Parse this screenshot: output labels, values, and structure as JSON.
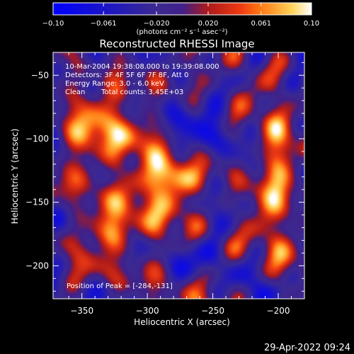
{
  "colorbar": {
    "ticks": [
      "-0.10",
      "-0.061",
      "-0.020",
      "0.020",
      "0.061",
      "0.10"
    ],
    "units_label": "(photons cm⁻² s⁻¹ asec⁻²)"
  },
  "chart_data": {
    "type": "heatmap",
    "title": "Reconstructed RHESSI Image",
    "xlabel": "Heliocentric X (arcsec)",
    "ylabel": "Heliocentric Y (arcsec)",
    "xlim": [
      -372,
      -180
    ],
    "ylim": [
      -226,
      -32
    ],
    "xticks": [
      -350,
      -300,
      -250,
      -200
    ],
    "yticks": [
      -50,
      -100,
      -150,
      -200
    ],
    "xtick_labels": [
      "−350",
      "−300",
      "−250",
      "−200"
    ],
    "ytick_labels": [
      "−50",
      "−100",
      "−150",
      "−200"
    ],
    "color_range": [
      -0.1,
      0.1
    ],
    "colormap_stops": [
      {
        "v": -0.1,
        "c": "#0000ff"
      },
      {
        "v": -0.061,
        "c": "#1a14c8"
      },
      {
        "v": -0.02,
        "c": "#3c2a90"
      },
      {
        "v": 0.0,
        "c": "#40208a"
      },
      {
        "v": 0.02,
        "c": "#ad1a1a"
      },
      {
        "v": 0.045,
        "c": "#ee3a12"
      },
      {
        "v": 0.061,
        "c": "#ff7a14"
      },
      {
        "v": 0.085,
        "c": "#ffd45a"
      },
      {
        "v": 0.1,
        "c": "#ffffff"
      }
    ],
    "peak": {
      "x": -284,
      "y": -131
    },
    "sources": [
      {
        "x": -284,
        "y": -131,
        "sx": 12,
        "sy": 10,
        "amp": 0.1
      },
      {
        "x": -329,
        "y": -173,
        "sx": 11,
        "sy": 10,
        "amp": 0.08
      },
      {
        "x": -346,
        "y": -120,
        "sx": 20,
        "sy": 30,
        "amp": 0.052
      },
      {
        "x": -318,
        "y": -96,
        "sx": 24,
        "sy": 16,
        "amp": 0.048
      },
      {
        "x": -297,
        "y": -160,
        "sx": 18,
        "sy": 26,
        "amp": 0.048
      },
      {
        "x": -340,
        "y": -210,
        "sx": 16,
        "sy": 10,
        "amp": 0.038
      },
      {
        "x": -300,
        "y": -58,
        "sx": 18,
        "sy": 9,
        "amp": 0.028
      },
      {
        "x": -201,
        "y": -108,
        "sx": 10,
        "sy": 18,
        "amp": 0.082
      },
      {
        "x": -207,
        "y": -150,
        "sx": 14,
        "sy": 22,
        "amp": 0.062
      },
      {
        "x": -197,
        "y": -196,
        "sx": 10,
        "sy": 18,
        "amp": 0.045
      },
      {
        "x": -252,
        "y": -210,
        "sx": 10,
        "sy": 8,
        "amp": 0.012
      }
    ],
    "background": -0.02
  },
  "annotations": {
    "time_range": "10-Mar-2004 19:38:08.000 to 19:39:08.000",
    "detectors": "Detectors: 3F 4F 5F 6F 7F 8F, Att 0",
    "energy_range": "Energy Range: 3.0 - 6.0 keV",
    "algorithm": "Clean",
    "total_counts": "Total counts: 3.45E+03",
    "peak_label": "Position of Peak = [-284,-131]"
  },
  "footer": {
    "timestamp": "29-Apr-2022 09:24"
  }
}
